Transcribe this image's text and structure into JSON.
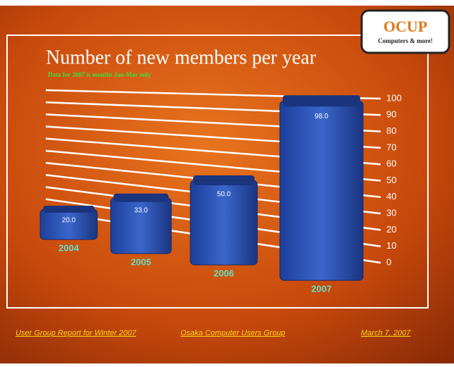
{
  "logo": {
    "name": "OCUP",
    "tagline": "Computers & more!"
  },
  "chart_data": {
    "type": "bar",
    "title": "Number of new members per year",
    "subtitle": "Data for 2007 is months Jan-Mar only",
    "categories": [
      "2004",
      "2005",
      "2006",
      "2007"
    ],
    "values": [
      20,
      33,
      50,
      98
    ],
    "value_labels": [
      "20.0",
      "33.0",
      "50.0",
      "98.0"
    ],
    "color": "#2f57b8",
    "ylim": [
      0,
      100
    ],
    "yticks": [
      0,
      10,
      20,
      30,
      40,
      50,
      60,
      70,
      80,
      90,
      100
    ],
    "grid": true
  },
  "footer": {
    "left": "User Group Report for Winter 2007",
    "center": "Osaka Computer Users Group",
    "right": "March 7, 2007"
  }
}
